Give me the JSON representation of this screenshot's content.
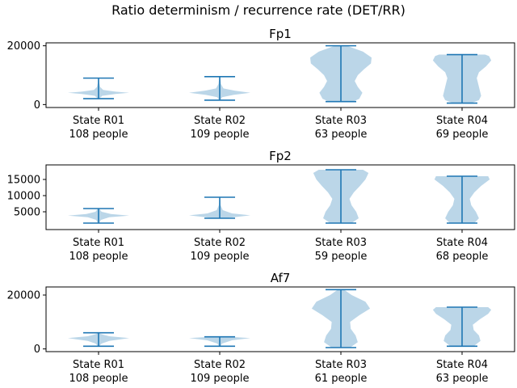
{
  "chart_data": {
    "type": "violin",
    "title": "Ratio determinism / recurrence rate (DET/RR)",
    "colors": {
      "body": "#1f77b4",
      "body_alpha": 0.3,
      "lines": "#1f77b4",
      "axes": "#000000"
    },
    "panels": [
      {
        "title": "Fp1",
        "ylim": [
          -1000,
          21000
        ],
        "yticks": [
          0,
          20000
        ],
        "categories": [
          {
            "label": "State R01",
            "count": "108 people",
            "min": 2000,
            "max": 9000,
            "density": [
              [
                2000,
                0.02
              ],
              [
                3000,
                0.12
              ],
              [
                3600,
                0.55
              ],
              [
                4000,
                1.0
              ],
              [
                4400,
                0.55
              ],
              [
                5000,
                0.15
              ],
              [
                6000,
                0.05
              ],
              [
                7500,
                0.02
              ],
              [
                9000,
                0.01
              ]
            ]
          },
          {
            "label": "State R02",
            "count": "109 people",
            "min": 1500,
            "max": 9500,
            "density": [
              [
                1500,
                0.02
              ],
              [
                2500,
                0.08
              ],
              [
                3300,
                0.45
              ],
              [
                4000,
                1.0
              ],
              [
                4700,
                0.5
              ],
              [
                5500,
                0.12
              ],
              [
                7000,
                0.04
              ],
              [
                9500,
                0.01
              ]
            ]
          },
          {
            "label": "State R03",
            "count": "63 people",
            "min": 1000,
            "max": 20000,
            "density": [
              [
                1000,
                0.4
              ],
              [
                2000,
                0.6
              ],
              [
                4000,
                0.7
              ],
              [
                6000,
                0.55
              ],
              [
                8000,
                0.45
              ],
              [
                10000,
                0.55
              ],
              [
                12000,
                0.75
              ],
              [
                14000,
                0.98
              ],
              [
                16000,
                1.0
              ],
              [
                18000,
                0.72
              ],
              [
                20000,
                0.2
              ]
            ]
          },
          {
            "label": "State R04",
            "count": "69 people",
            "min": 500,
            "max": 17000,
            "density": [
              [
                500,
                0.3
              ],
              [
                1500,
                0.55
              ],
              [
                3000,
                0.62
              ],
              [
                6000,
                0.55
              ],
              [
                9000,
                0.48
              ],
              [
                11000,
                0.55
              ],
              [
                13000,
                0.78
              ],
              [
                15000,
                0.95
              ],
              [
                16500,
                0.88
              ],
              [
                17000,
                0.75
              ]
            ]
          }
        ]
      },
      {
        "title": "Fp2",
        "ylim": [
          -500,
          19500
        ],
        "yticks": [
          5000,
          10000,
          15000
        ],
        "categories": [
          {
            "label": "State R01",
            "count": "108 people",
            "min": 1500,
            "max": 6000,
            "density": [
              [
                1500,
                0.02
              ],
              [
                2500,
                0.08
              ],
              [
                3300,
                0.35
              ],
              [
                3800,
                1.0
              ],
              [
                4300,
                0.4
              ],
              [
                5000,
                0.1
              ],
              [
                6000,
                0.02
              ]
            ]
          },
          {
            "label": "State R02",
            "count": "109 people",
            "min": 3000,
            "max": 9500,
            "density": [
              [
                3000,
                0.15
              ],
              [
                3400,
                0.55
              ],
              [
                3900,
                1.0
              ],
              [
                4500,
                0.4
              ],
              [
                5500,
                0.1
              ],
              [
                7000,
                0.03
              ],
              [
                9500,
                0.01
              ]
            ]
          },
          {
            "label": "State R03",
            "count": "59 people",
            "min": 1500,
            "max": 18000,
            "density": [
              [
                1500,
                0.35
              ],
              [
                3000,
                0.58
              ],
              [
                5000,
                0.5
              ],
              [
                7000,
                0.35
              ],
              [
                9000,
                0.28
              ],
              [
                11000,
                0.42
              ],
              [
                13000,
                0.62
              ],
              [
                15000,
                0.8
              ],
              [
                17000,
                0.9
              ],
              [
                18000,
                0.72
              ]
            ]
          },
          {
            "label": "State R04",
            "count": "68 people",
            "min": 1500,
            "max": 16000,
            "density": [
              [
                1500,
                0.4
              ],
              [
                3000,
                0.55
              ],
              [
                5000,
                0.45
              ],
              [
                7000,
                0.3
              ],
              [
                9000,
                0.25
              ],
              [
                11000,
                0.4
              ],
              [
                13000,
                0.62
              ],
              [
                15000,
                0.9
              ],
              [
                16000,
                0.85
              ]
            ]
          }
        ]
      },
      {
        "title": "Af7",
        "ylim": [
          -1000,
          23000
        ],
        "yticks": [
          0,
          20000
        ],
        "categories": [
          {
            "label": "State R01",
            "count": "108 people",
            "min": 1000,
            "max": 6000,
            "density": [
              [
                1000,
                0.02
              ],
              [
                2000,
                0.1
              ],
              [
                3000,
                0.35
              ],
              [
                4000,
                1.0
              ],
              [
                4700,
                0.35
              ],
              [
                5500,
                0.08
              ],
              [
                6000,
                0.02
              ]
            ]
          },
          {
            "label": "State R02",
            "count": "109 people",
            "min": 1000,
            "max": 4500,
            "density": [
              [
                1000,
                0.02
              ],
              [
                2000,
                0.08
              ],
              [
                3200,
                0.4
              ],
              [
                4000,
                1.0
              ],
              [
                4500,
                0.35
              ]
            ]
          },
          {
            "label": "State R03",
            "count": "61 people",
            "min": 500,
            "max": 22000,
            "density": [
              [
                500,
                0.3
              ],
              [
                2500,
                0.55
              ],
              [
                5000,
                0.48
              ],
              [
                7500,
                0.32
              ],
              [
                10000,
                0.3
              ],
              [
                12500,
                0.6
              ],
              [
                15000,
                0.95
              ],
              [
                17500,
                0.8
              ],
              [
                20000,
                0.35
              ],
              [
                22000,
                0.1
              ]
            ]
          },
          {
            "label": "State R04",
            "count": "63 people",
            "min": 1000,
            "max": 15500,
            "density": [
              [
                1000,
                0.38
              ],
              [
                3000,
                0.6
              ],
              [
                5000,
                0.55
              ],
              [
                7000,
                0.38
              ],
              [
                9000,
                0.35
              ],
              [
                11000,
                0.58
              ],
              [
                13000,
                0.85
              ],
              [
                14500,
                0.95
              ],
              [
                15500,
                0.85
              ]
            ]
          }
        ]
      }
    ]
  }
}
